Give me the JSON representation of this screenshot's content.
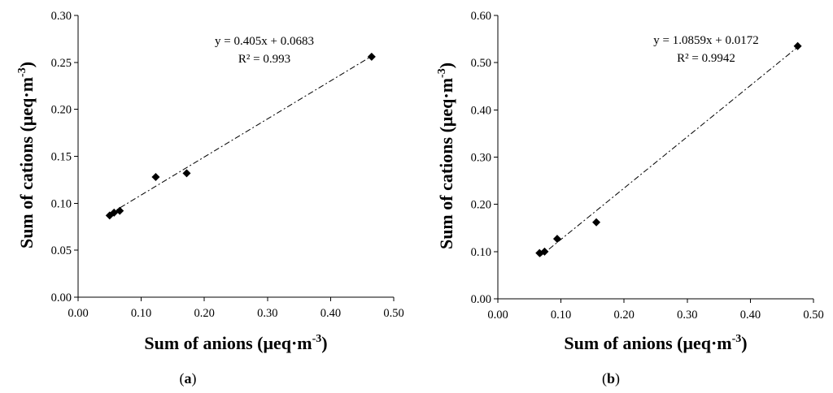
{
  "chart_data": [
    {
      "type": "scatter",
      "panel_label": "a",
      "xlabel": "Sum of anions (μeq·m",
      "xlabel_sup": "-3",
      "xlabel_end": ")",
      "ylabel": "Sum of cations (μeq·m",
      "ylabel_sup": "-3",
      "ylabel_end": ")",
      "xlim": [
        0,
        0.5
      ],
      "ylim": [
        0,
        0.3
      ],
      "x_ticks": [
        "0.00",
        "0.10",
        "0.20",
        "0.30",
        "0.40",
        "0.50"
      ],
      "y_ticks": [
        "0.00",
        "0.05",
        "0.10",
        "0.15",
        "0.20",
        "0.25",
        "0.30"
      ],
      "points": [
        {
          "x": 0.05,
          "y": 0.087
        },
        {
          "x": 0.057,
          "y": 0.09
        },
        {
          "x": 0.066,
          "y": 0.092
        },
        {
          "x": 0.123,
          "y": 0.128
        },
        {
          "x": 0.172,
          "y": 0.132
        },
        {
          "x": 0.465,
          "y": 0.256
        }
      ],
      "trendline": {
        "slope": 0.405,
        "intercept": 0.0683,
        "x_range": [
          0.05,
          0.465
        ]
      },
      "equation": "y = 0.405x + 0.0683",
      "r2": "R² = 0.993"
    },
    {
      "type": "scatter",
      "panel_label": "b",
      "xlabel": "Sum of anions (μeq·m",
      "xlabel_sup": "-3",
      "xlabel_end": ")",
      "ylabel": "Sum of cations (μeq·m",
      "ylabel_sup": "-3",
      "ylabel_end": ")",
      "xlim": [
        0,
        0.5
      ],
      "ylim": [
        0,
        0.6
      ],
      "x_ticks": [
        "0.00",
        "0.10",
        "0.20",
        "0.30",
        "0.40",
        "0.50"
      ],
      "y_ticks": [
        "0.00",
        "0.10",
        "0.20",
        "0.30",
        "0.40",
        "0.50",
        "0.60"
      ],
      "points": [
        {
          "x": 0.066,
          "y": 0.097
        },
        {
          "x": 0.074,
          "y": 0.1
        },
        {
          "x": 0.094,
          "y": 0.127
        },
        {
          "x": 0.156,
          "y": 0.162
        },
        {
          "x": 0.475,
          "y": 0.535
        }
      ],
      "trendline": {
        "slope": 1.0859,
        "intercept": 0.0172,
        "x_range": [
          0.066,
          0.475
        ]
      },
      "equation": "y = 1.0859x + 0.0172",
      "r2": "R² = 0.9942"
    }
  ]
}
